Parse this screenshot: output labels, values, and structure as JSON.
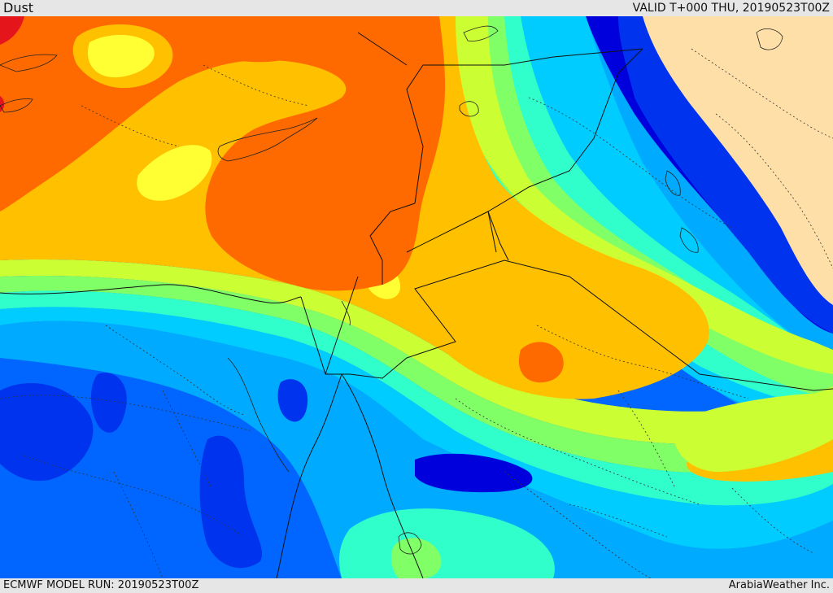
{
  "header": {
    "title": "Dust",
    "valid_label": "VALID T+000 THU, 20190523T00Z"
  },
  "footer": {
    "model_run": "ECMWF MODEL RUN: 20190523T00Z",
    "credit": "ArabiaWeather Inc."
  },
  "colors": {
    "red": "#e4161c",
    "orange_red": "#ff6a00",
    "orange": "#ffc000",
    "yellow": "#ffff33",
    "yellow_green": "#ccff33",
    "green": "#80ff66",
    "aqua": "#30ffcc",
    "cyan": "#00ccff",
    "light_blue": "#00aaff",
    "blue": "#0066ff",
    "deep_blue": "#0033ee",
    "navy": "#0000dd",
    "land": "#ffdfa8"
  }
}
